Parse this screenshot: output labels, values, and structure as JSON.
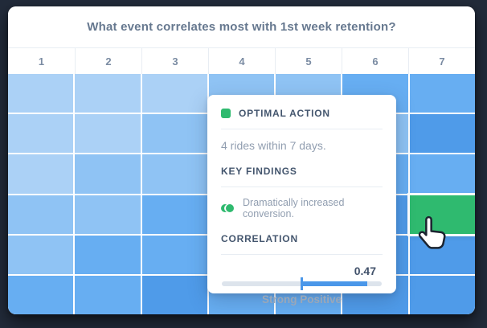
{
  "title": "What event correlates most with 1st week retention?",
  "heatmap": {
    "columns": [
      "1",
      "2",
      "3",
      "4",
      "5",
      "6",
      "7"
    ],
    "palette": {
      "B1": "#abd1f6",
      "B2": "#8fc3f4",
      "B3": "#67aef2",
      "B4": "#4f9be9",
      "GREEN": "#2fba6f"
    },
    "cells": [
      [
        "B1",
        "B1",
        "B1",
        "B2",
        "B2",
        "B3",
        "B3"
      ],
      [
        "B1",
        "B1",
        "B2",
        "B2",
        "B2",
        "B2",
        "B4"
      ],
      [
        "B1",
        "B2",
        "B2",
        "B3",
        "B3",
        "B3",
        "B3"
      ],
      [
        "B2",
        "B2",
        "B3",
        "B3",
        "B3",
        "B4",
        "GREEN"
      ],
      [
        "B2",
        "B3",
        "B3",
        "B3",
        "B3",
        "B4",
        "B4"
      ],
      [
        "B3",
        "B3",
        "B4",
        "B3",
        "B3",
        "B4",
        "B4"
      ]
    ],
    "selected": {
      "row": 4,
      "column": "7"
    }
  },
  "popover": {
    "optimal_action_label": "OPTIMAL ACTION",
    "optimal_action_text": "4 rides within 7 days.",
    "key_findings_label": "KEY FINDINGS",
    "finding_text": "Dramatically increased conversion.",
    "correlation_label": "CORRELATION",
    "correlation_value": "0.47",
    "correlation_caption": "Strong Positive",
    "slider": {
      "fill_start_pct": 49.5,
      "fill_end_pct": 91
    }
  },
  "colors": {
    "background": "#222b3a",
    "accent_green": "#2fba6f",
    "accent_blue": "#4a97e9",
    "heading_text": "#44566e",
    "muted_text": "#919eb0"
  }
}
